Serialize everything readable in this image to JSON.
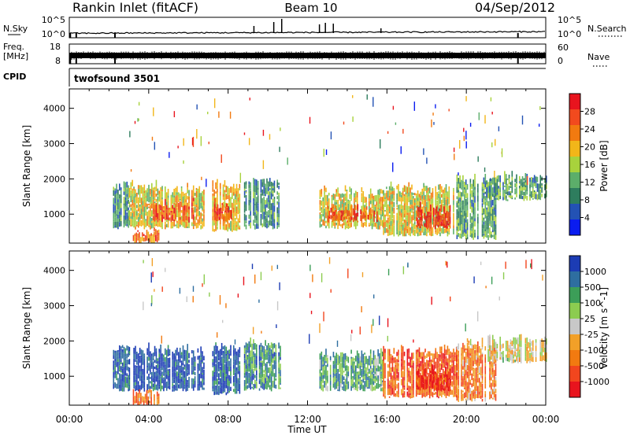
{
  "header": {
    "station": "Rankin Inlet (fitACF)",
    "beam": "Beam 10",
    "date": "04/Sep/2012"
  },
  "nsky_panel": {
    "left_label": "N.Sky",
    "left_ticks": [
      "10^5",
      "10^0"
    ],
    "right_label": "N.Search",
    "right_ticks": [
      "10^5",
      "10^0"
    ]
  },
  "freq_panel": {
    "left_label_line1": "Freq.",
    "left_label_line2": "[MHz]",
    "left_ticks": [
      "18",
      "8"
    ],
    "right_label": "Nave",
    "right_ticks": [
      "60",
      "0"
    ]
  },
  "cpid": {
    "label": "CPID",
    "value": "twofsound 3501"
  },
  "time_axis": {
    "label": "Time UT",
    "ticks": [
      "00:00",
      "04:00",
      "08:00",
      "12:00",
      "16:00",
      "20:00",
      "00:00"
    ]
  },
  "colors": {
    "power_scale": [
      "#0a1cf0",
      "#2352b4",
      "#2e7d5e",
      "#5cae6a",
      "#a8d23c",
      "#f2b619",
      "#f27a10",
      "#f24a1e",
      "#e8141e"
    ],
    "velocity_scale": [
      "#e8141e",
      "#f2461e",
      "#f27a10",
      "#f2a028",
      "#c8c8c8",
      "#8ccc50",
      "#3c9e58",
      "#2e6ea0",
      "#1c3cb4"
    ]
  },
  "chart_data": [
    {
      "type": "heatmap",
      "panel": "power",
      "ylabel": "Slant Range [km]",
      "xlabel": "",
      "x_range_hours": [
        0,
        24
      ],
      "ylim_km": [
        180,
        4550
      ],
      "yticks": [
        1000,
        2000,
        3000,
        4000
      ],
      "colorbar": {
        "label": "Power [dB]",
        "range": [
          0,
          32
        ],
        "ticks": [
          4,
          8,
          12,
          16,
          20,
          24,
          28
        ]
      },
      "echo_regions": [
        {
          "t_start": 2.2,
          "t_end": 3.0,
          "r_min": 600,
          "r_max": 1900,
          "level": 0.3
        },
        {
          "t_start": 3.0,
          "t_end": 6.8,
          "r_min": 600,
          "r_max": 1800,
          "level": 0.55
        },
        {
          "t_start": 4.2,
          "t_end": 6.3,
          "r_min": 800,
          "r_max": 1400,
          "level": 0.8
        },
        {
          "t_start": 3.2,
          "t_end": 4.5,
          "r_min": 180,
          "r_max": 600,
          "level": 0.75
        },
        {
          "t_start": 7.2,
          "t_end": 8.6,
          "r_min": 500,
          "r_max": 1900,
          "level": 0.6
        },
        {
          "t_start": 7.3,
          "t_end": 8.2,
          "r_min": 800,
          "r_max": 1300,
          "level": 0.85
        },
        {
          "t_start": 8.8,
          "t_end": 10.6,
          "r_min": 600,
          "r_max": 2000,
          "level": 0.3
        },
        {
          "t_start": 12.6,
          "t_end": 15.8,
          "r_min": 600,
          "r_max": 1700,
          "level": 0.55
        },
        {
          "t_start": 13.0,
          "t_end": 15.5,
          "r_min": 800,
          "r_max": 1200,
          "level": 0.8
        },
        {
          "t_start": 15.8,
          "t_end": 19.5,
          "r_min": 400,
          "r_max": 1800,
          "level": 0.55
        },
        {
          "t_start": 17.5,
          "t_end": 19.2,
          "r_min": 600,
          "r_max": 1200,
          "level": 0.9
        },
        {
          "t_start": 19.5,
          "t_end": 21.5,
          "r_min": 300,
          "r_max": 2000,
          "level": 0.35
        },
        {
          "t_start": 21.0,
          "t_end": 24.0,
          "r_min": 1400,
          "r_max": 2100,
          "level": 0.35
        }
      ]
    },
    {
      "type": "heatmap",
      "panel": "velocity",
      "ylabel": "Slant Range [km]",
      "xlabel": "Time UT",
      "x_range_hours": [
        0,
        24
      ],
      "ylim_km": [
        180,
        4550
      ],
      "yticks": [
        1000,
        2000,
        3000,
        4000
      ],
      "colorbar": {
        "label": "Velocity [m s^-1]",
        "ticks": [
          "1000",
          "500",
          "100",
          "25",
          "-25",
          "-100",
          "-500",
          "-1000"
        ]
      },
      "echo_regions": [
        {
          "t_start": 2.2,
          "t_end": 3.0,
          "r_min": 600,
          "r_max": 1900,
          "level": 0.85
        },
        {
          "t_start": 3.0,
          "t_end": 6.8,
          "r_min": 600,
          "r_max": 1800,
          "level": 0.92
        },
        {
          "t_start": 3.2,
          "t_end": 4.5,
          "r_min": 180,
          "r_max": 600,
          "level": 0.3
        },
        {
          "t_start": 7.2,
          "t_end": 8.6,
          "r_min": 500,
          "r_max": 1900,
          "level": 0.9
        },
        {
          "t_start": 8.8,
          "t_end": 10.6,
          "r_min": 600,
          "r_max": 2000,
          "level": 0.75
        },
        {
          "t_start": 12.6,
          "t_end": 15.8,
          "r_min": 600,
          "r_max": 1700,
          "level": 0.7
        },
        {
          "t_start": 15.8,
          "t_end": 19.5,
          "r_min": 400,
          "r_max": 1800,
          "level": 0.22
        },
        {
          "t_start": 17.5,
          "t_end": 19.2,
          "r_min": 600,
          "r_max": 1200,
          "level": 0.1
        },
        {
          "t_start": 19.5,
          "t_end": 21.5,
          "r_min": 300,
          "r_max": 2000,
          "level": 0.3
        },
        {
          "t_start": 21.0,
          "t_end": 24.0,
          "r_min": 1400,
          "r_max": 2100,
          "level": 0.5
        }
      ]
    }
  ]
}
